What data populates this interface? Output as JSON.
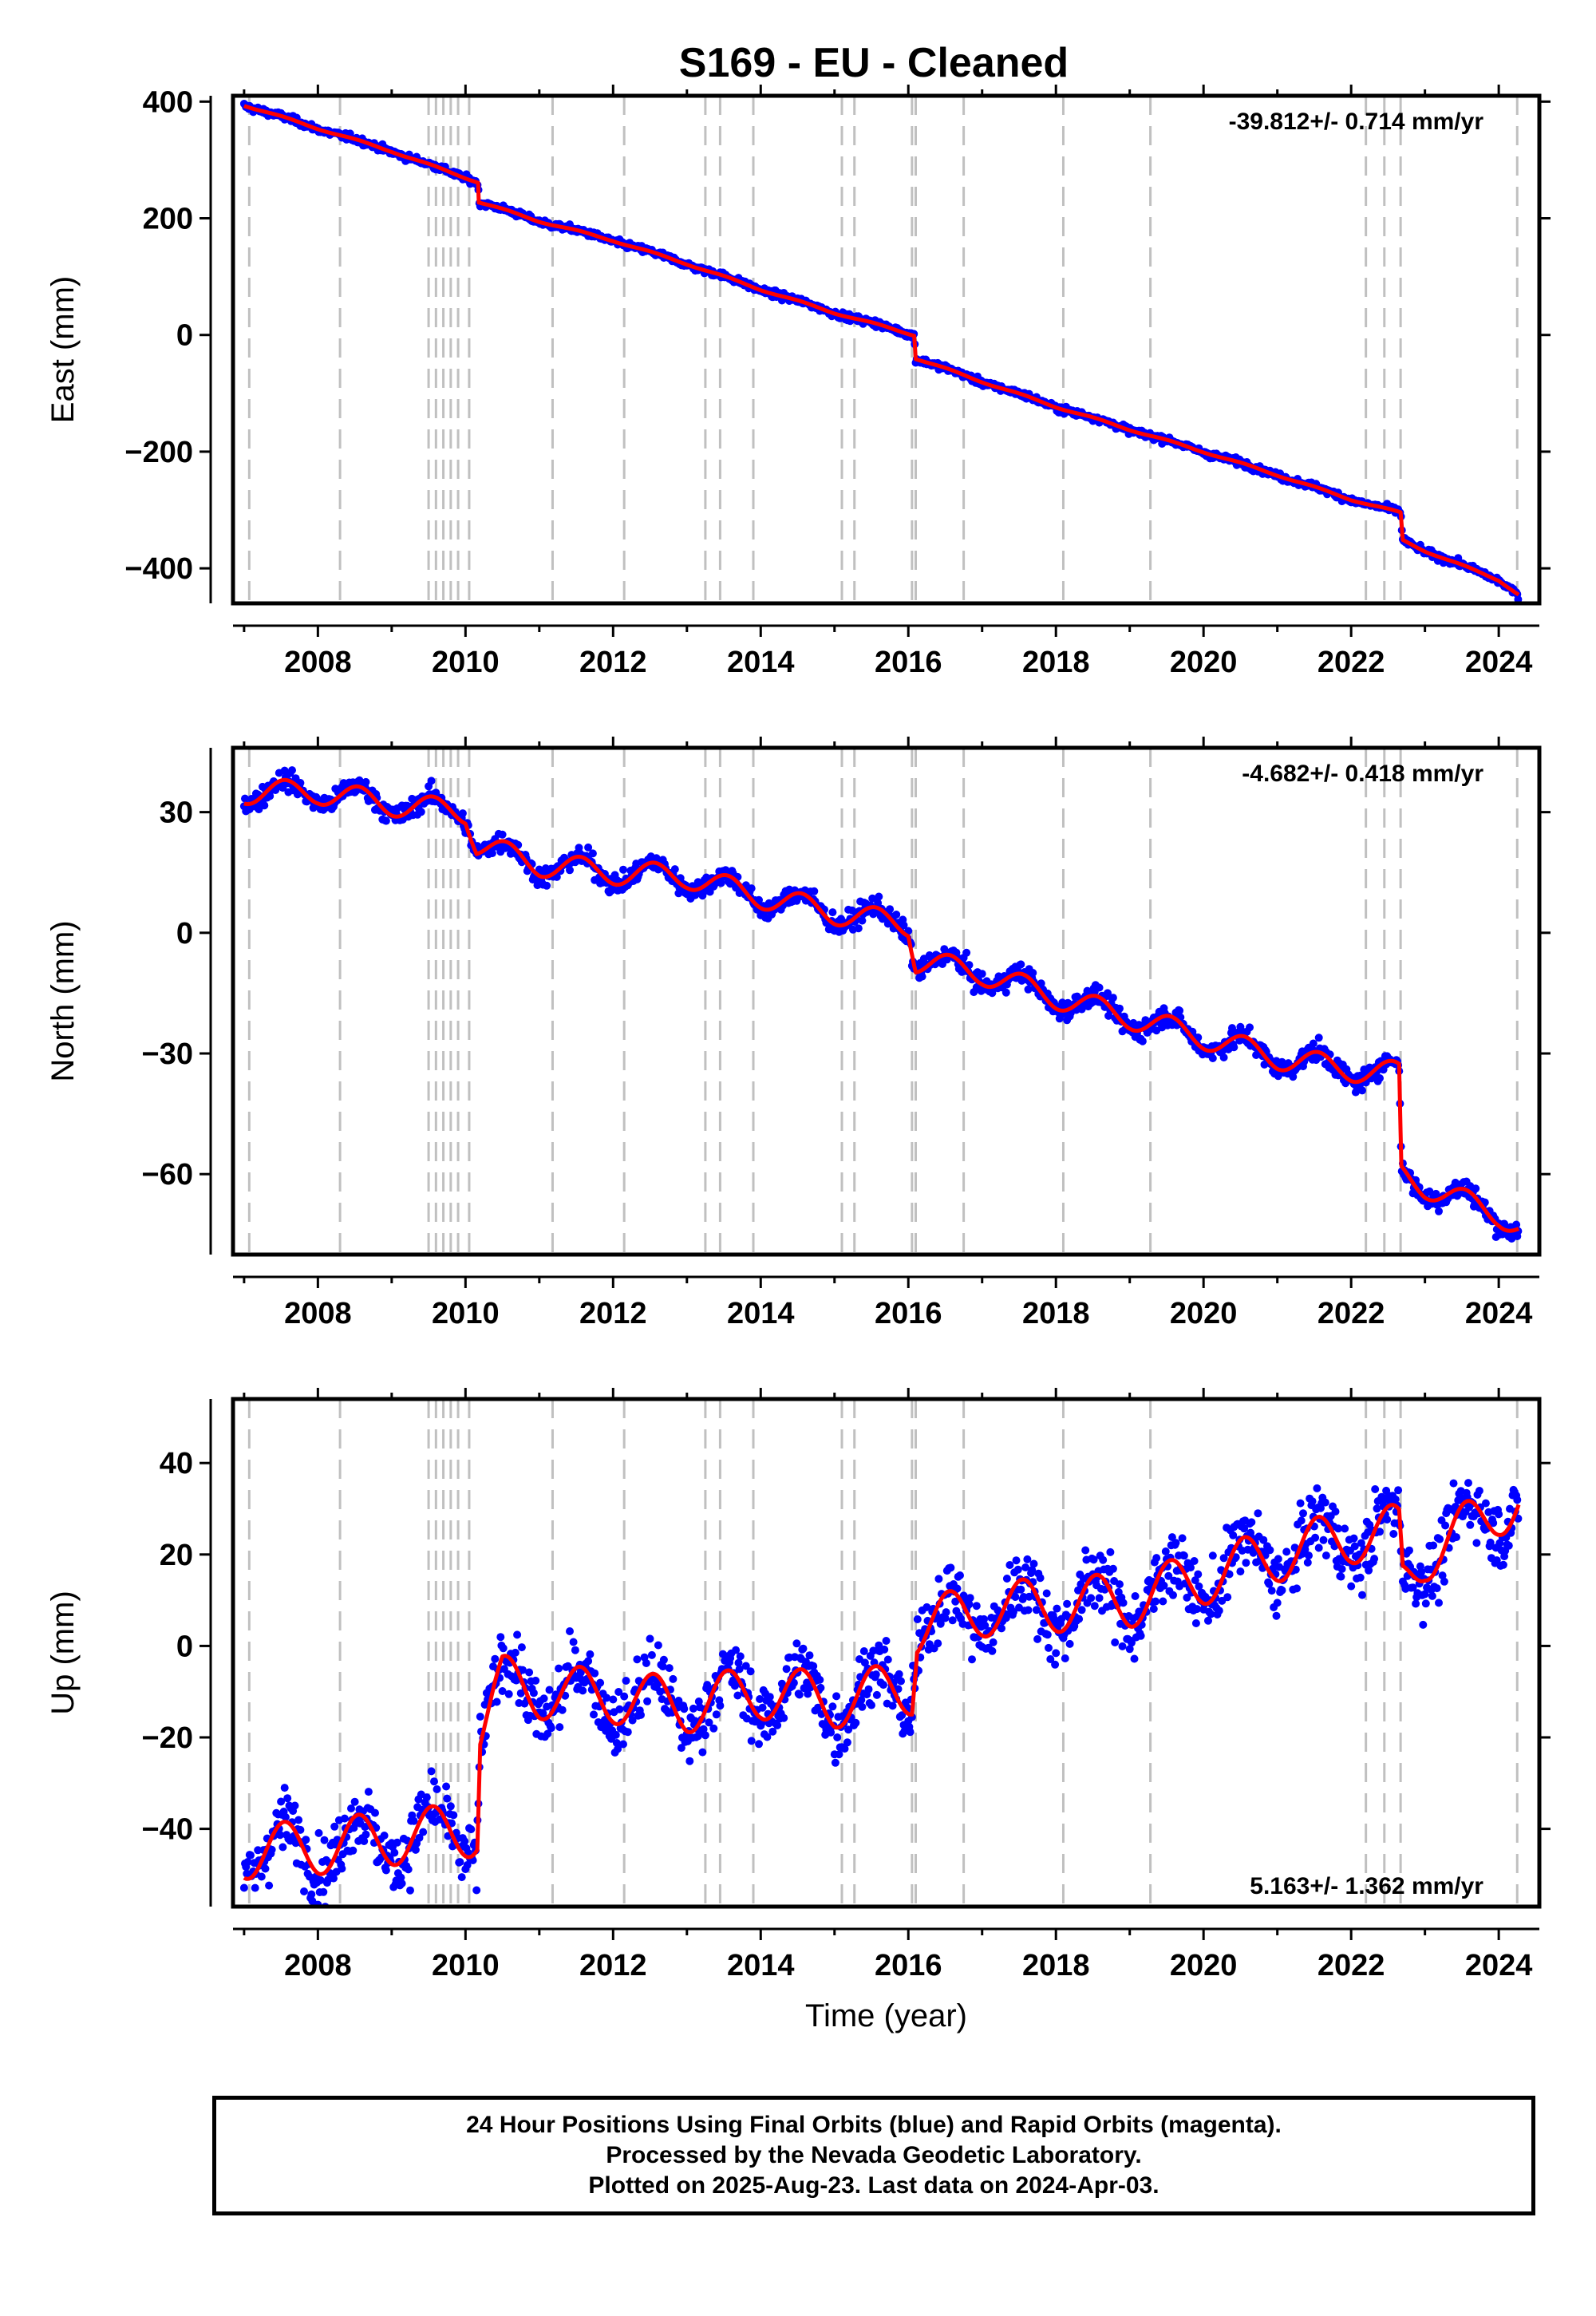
{
  "title": "S169  - EU - Cleaned",
  "footer": {
    "line1": "24 Hour Positions Using Final Orbits (blue) and Rapid Orbits (magenta).",
    "line2": "Processed by the Nevada Geodetic Laboratory.",
    "line3": "Plotted on 2025-Aug-23. Last data on 2024-Apr-03."
  },
  "colors": {
    "data": "#0000ff",
    "model": "#ff0000",
    "events": "#c0c0c0",
    "axes": "#000000"
  },
  "chart_data": [
    {
      "type": "scatter",
      "name": "east",
      "xlabel": "Time (year)",
      "ylabel": "East (mm)",
      "xlim": [
        2006.85,
        2024.55
      ],
      "ylim": [
        -460,
        410
      ],
      "xticks": [
        2008,
        2010,
        2012,
        2014,
        2016,
        2018,
        2020,
        2022,
        2024
      ],
      "yticks": [
        -400,
        -200,
        0,
        200,
        400
      ],
      "rate_label": "-39.812+/- 0.714 mm/yr",
      "rate_position": "top-right",
      "legend": "none",
      "grid": false,
      "event_lines": [
        2007.07,
        2008.3,
        2009.5,
        2009.6,
        2009.7,
        2009.8,
        2009.9,
        2010.05,
        2011.18,
        2012.15,
        2013.25,
        2013.45,
        2013.9,
        2015.1,
        2015.27,
        2016.05,
        2016.1,
        2016.75,
        2018.1,
        2019.28,
        2022.2,
        2022.45,
        2022.67,
        2024.25
      ],
      "model_line": [
        [
          2007.0,
          394
        ],
        [
          2008.0,
          354
        ],
        [
          2009.0,
          315
        ],
        [
          2009.5,
          292
        ],
        [
          2010.17,
          262
        ],
        [
          2010.18,
          228
        ],
        [
          2011.0,
          195
        ],
        [
          2012.0,
          162
        ],
        [
          2013.0,
          122
        ],
        [
          2014.0,
          78
        ],
        [
          2015.0,
          38
        ],
        [
          2016.08,
          0
        ],
        [
          2016.1,
          -40
        ],
        [
          2017.0,
          -80
        ],
        [
          2018.0,
          -123
        ],
        [
          2019.0,
          -162
        ],
        [
          2020.0,
          -200
        ],
        [
          2021.0,
          -240
        ],
        [
          2022.0,
          -282
        ],
        [
          2022.67,
          -305
        ],
        [
          2022.7,
          -352
        ],
        [
          2023.0,
          -370
        ],
        [
          2024.0,
          -420
        ],
        [
          2024.27,
          -445
        ]
      ],
      "seasonal_amplitude": 1.5,
      "scatter_noise": 4
    },
    {
      "type": "scatter",
      "name": "north",
      "xlabel": "Time (year)",
      "ylabel": "North (mm)",
      "xlim": [
        2006.85,
        2024.55
      ],
      "ylim": [
        -80,
        46
      ],
      "xticks": [
        2008,
        2010,
        2012,
        2014,
        2016,
        2018,
        2020,
        2022,
        2024
      ],
      "yticks": [
        -60,
        -30,
        0,
        30
      ],
      "rate_label": "-4.682+/- 0.418 mm/yr",
      "rate_position": "top-right",
      "legend": "none",
      "grid": false,
      "event_lines": [
        2007.07,
        2008.3,
        2009.5,
        2009.6,
        2009.7,
        2009.8,
        2009.9,
        2010.05,
        2011.18,
        2012.15,
        2013.25,
        2013.45,
        2013.9,
        2015.1,
        2015.27,
        2016.05,
        2016.1,
        2016.75,
        2018.1,
        2019.28,
        2022.2,
        2022.45,
        2022.67,
        2024.25
      ],
      "model_line": [
        [
          2007.0,
          35
        ],
        [
          2008.0,
          35
        ],
        [
          2009.0,
          32
        ],
        [
          2010.0,
          30
        ],
        [
          2010.15,
          22
        ],
        [
          2011.0,
          17
        ],
        [
          2012.0,
          15
        ],
        [
          2013.0,
          14
        ],
        [
          2014.0,
          9
        ],
        [
          2015.0,
          5
        ],
        [
          2016.0,
          2
        ],
        [
          2016.1,
          -7
        ],
        [
          2017.0,
          -10
        ],
        [
          2018.0,
          -16
        ],
        [
          2019.0,
          -21
        ],
        [
          2020.0,
          -26
        ],
        [
          2021.0,
          -31
        ],
        [
          2022.0,
          -34
        ],
        [
          2022.65,
          -35
        ],
        [
          2022.68,
          -60
        ],
        [
          2023.0,
          -63
        ],
        [
          2024.0,
          -70
        ],
        [
          2024.27,
          -73
        ]
      ],
      "seasonal_amplitude": 3,
      "scatter_noise": 1.8
    },
    {
      "type": "scatter",
      "name": "up",
      "xlabel": "Time (year)",
      "ylabel": "Up (mm)",
      "xlim": [
        2006.85,
        2024.55
      ],
      "ylim": [
        -57,
        54
      ],
      "xticks": [
        2008,
        2010,
        2012,
        2014,
        2016,
        2018,
        2020,
        2022,
        2024
      ],
      "yticks": [
        -40,
        -20,
        0,
        20,
        40
      ],
      "rate_label": "5.163+/- 1.362 mm/yr",
      "rate_position": "bottom-right",
      "legend": "none",
      "grid": false,
      "event_lines": [
        2007.07,
        2008.3,
        2009.5,
        2009.6,
        2009.7,
        2009.8,
        2009.9,
        2010.05,
        2011.18,
        2012.15,
        2013.25,
        2013.45,
        2013.9,
        2015.1,
        2015.27,
        2016.05,
        2016.1,
        2016.75,
        2018.1,
        2019.28,
        2022.2,
        2022.45,
        2022.67,
        2024.25
      ],
      "model_line": [
        [
          2007.0,
          -45
        ],
        [
          2008.0,
          -44
        ],
        [
          2009.0,
          -42
        ],
        [
          2010.16,
          -40
        ],
        [
          2010.2,
          -18
        ],
        [
          2010.5,
          -8
        ],
        [
          2011.0,
          -10
        ],
        [
          2012.0,
          -11
        ],
        [
          2013.0,
          -13
        ],
        [
          2014.0,
          -10
        ],
        [
          2015.0,
          -12
        ],
        [
          2016.05,
          -9
        ],
        [
          2016.12,
          4
        ],
        [
          2017.0,
          8
        ],
        [
          2018.0,
          9
        ],
        [
          2019.0,
          10
        ],
        [
          2020.0,
          15
        ],
        [
          2021.0,
          20
        ],
        [
          2022.0,
          24
        ],
        [
          2022.65,
          25
        ],
        [
          2022.7,
          14
        ],
        [
          2023.0,
          20
        ],
        [
          2024.0,
          30
        ],
        [
          2024.27,
          32
        ]
      ],
      "seasonal_amplitude": 6,
      "scatter_noise": 5
    }
  ]
}
